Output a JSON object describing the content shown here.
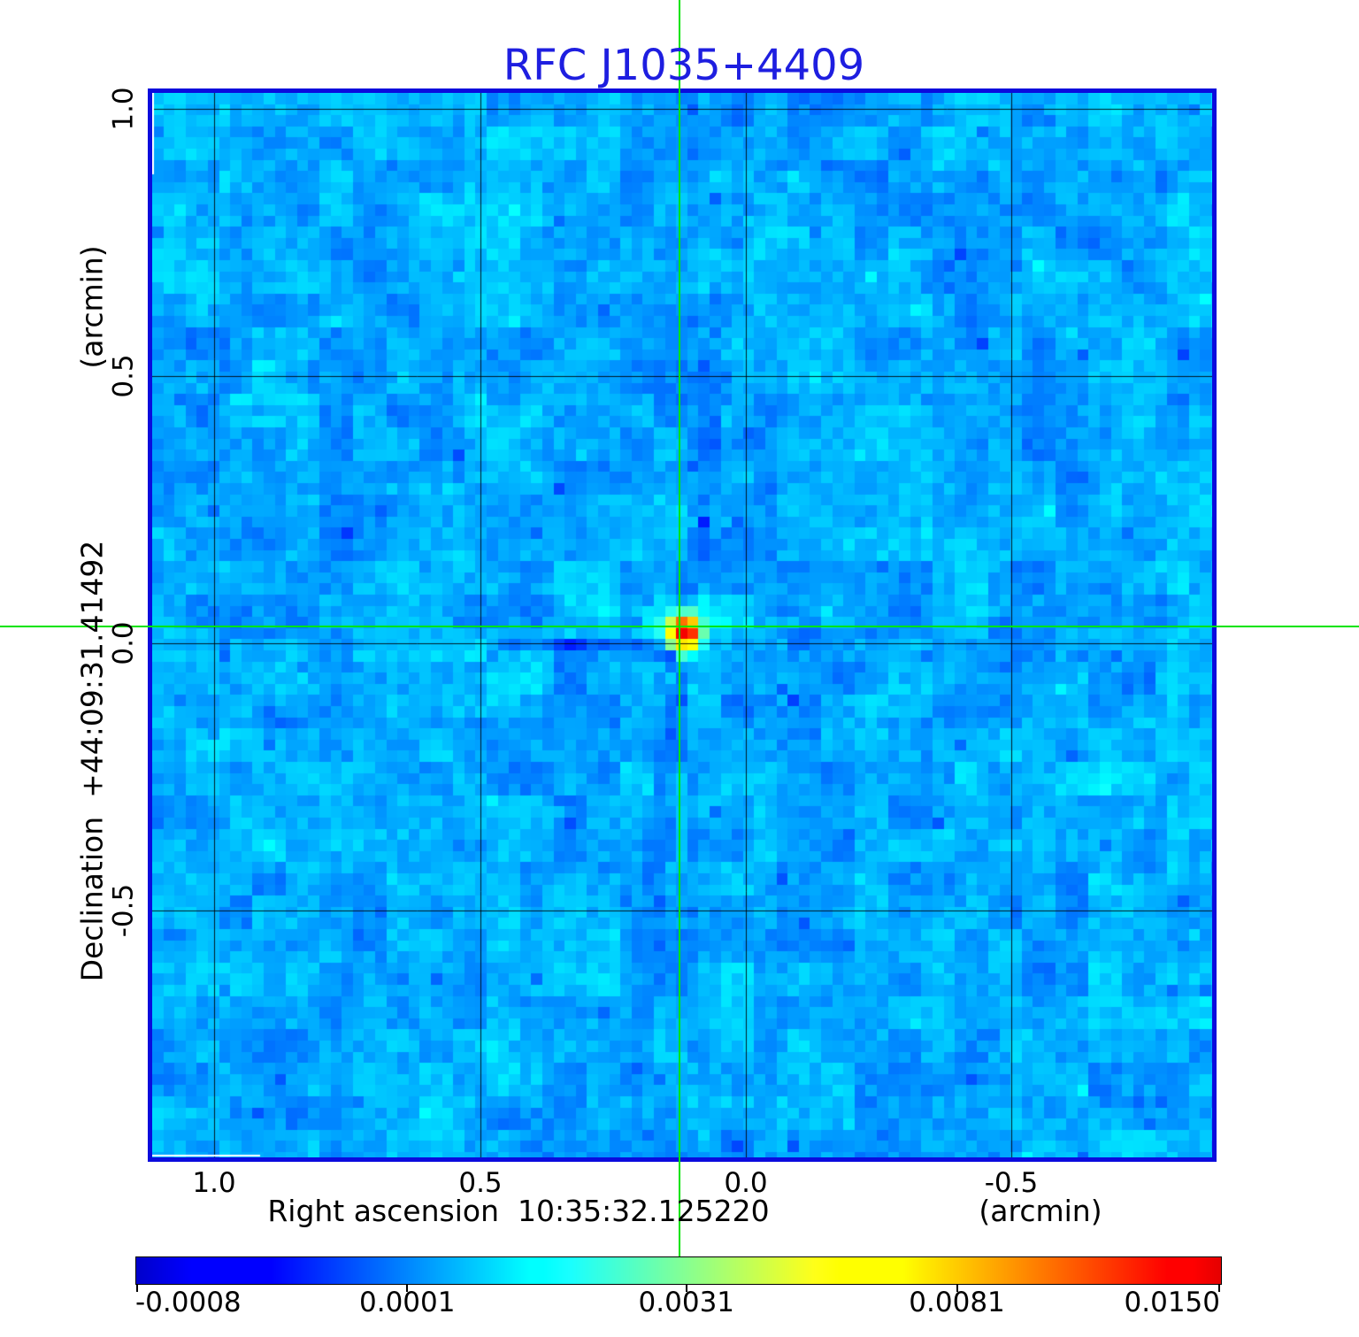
{
  "title": "RFC J1035+4409",
  "axes": {
    "x": {
      "title": "Right ascension  10:35:32.125220",
      "unit": "(arcmin)",
      "tick_labels": [
        "1.0",
        "0.5",
        "0.0",
        "-0.5"
      ]
    },
    "y": {
      "title": "Declination  +44:09:31.41492",
      "unit": "(arcmin)",
      "tick_labels": [
        "1.0",
        "0.5",
        "0.0",
        "-0.5"
      ]
    }
  },
  "colorbar": {
    "tick_labels": [
      "-0.0008",
      "0.0001",
      "0.0031",
      "0.0081",
      "0.0150"
    ]
  },
  "colors": {
    "title_blue": "#1e1ee0",
    "frame_blue": "#0b0bdd",
    "crosshair_green": "#00e400",
    "grid_black": "#000000",
    "background_white": "#ffffff"
  },
  "chart_data": {
    "type": "heatmap",
    "title": "RFC J1035+4409",
    "description": "Radio interferometric (VLBI) sky map: blue noise field with one bright compact point source at the phase center, marked by a green crosshair; faint dark sidelobe streaks radiate from the source.",
    "x_axis": {
      "label": "Right ascension",
      "reference_value": "10:35:32.125220",
      "unit": "arcmin",
      "tick_values": [
        1.0,
        0.5,
        0.0,
        -0.5
      ],
      "range": [
        1.12,
        -0.88
      ]
    },
    "y_axis": {
      "label": "Declination",
      "reference_value": "+44:09:31.41492",
      "unit": "arcmin",
      "tick_values": [
        1.0,
        0.5,
        0.0,
        -0.5
      ],
      "range": [
        -0.97,
        1.03
      ]
    },
    "color_scale": {
      "colormap": "jet",
      "vmin": -0.0008,
      "vmax": 0.015,
      "tick_values": [
        -0.0008,
        0.0001,
        0.0031,
        0.0081,
        0.015
      ],
      "tick_spacing": "quadratic"
    },
    "point_source": {
      "ra_offset_arcmin": 0.125,
      "dec_offset_arcmin": 0.03,
      "peak_value_approx": 0.015
    },
    "background_level_approx": 0.0005,
    "grid": true,
    "legend": "colorbar-bottom"
  }
}
